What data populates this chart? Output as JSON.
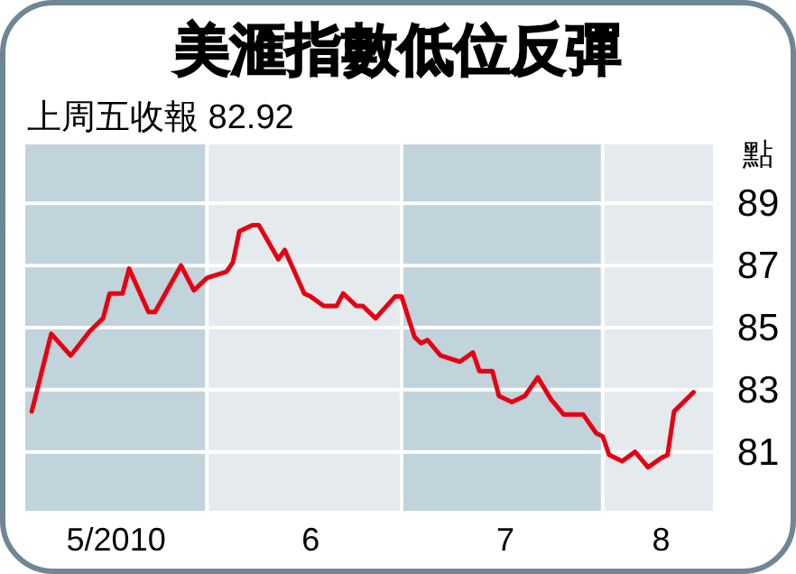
{
  "chart_data": {
    "type": "line",
    "title": "美滙指數低位反彈",
    "subtitle": "上周五收報 82.92",
    "ylabel": "點",
    "x": [
      "2010-05-05",
      "2010-05-08",
      "2010-05-11",
      "2010-05-14",
      "2010-05-16",
      "2010-05-17",
      "2010-05-19",
      "2010-05-20",
      "2010-05-23",
      "2010-05-24",
      "2010-05-28",
      "2010-05-30",
      "2010-06-01",
      "2010-06-04",
      "2010-06-05",
      "2010-06-06",
      "2010-06-08",
      "2010-06-09",
      "2010-06-12",
      "2010-06-13",
      "2010-06-16",
      "2010-06-17",
      "2010-06-19",
      "2010-06-21",
      "2010-06-22",
      "2010-06-24",
      "2010-06-25",
      "2010-06-27",
      "2010-06-30",
      "2010-07-01",
      "2010-07-03",
      "2010-07-04",
      "2010-07-05",
      "2010-07-07",
      "2010-07-10",
      "2010-07-12",
      "2010-07-13",
      "2010-07-15",
      "2010-07-16",
      "2010-07-18",
      "2010-07-20",
      "2010-07-22",
      "2010-07-24",
      "2010-07-26",
      "2010-07-29",
      "2010-07-31",
      "2010-08-01",
      "2010-08-02",
      "2010-08-04",
      "2010-08-06",
      "2010-08-08",
      "2010-08-10",
      "2010-08-11",
      "2010-08-12",
      "2010-08-15"
    ],
    "series": [
      {
        "color": "#e60012",
        "values": [
          82.3,
          84.8,
          84.1,
          84.9,
          85.3,
          86.1,
          86.1,
          86.9,
          85.5,
          85.5,
          87.0,
          86.2,
          86.6,
          86.8,
          87.1,
          88.1,
          88.3,
          88.3,
          87.2,
          87.5,
          86.1,
          86.0,
          85.7,
          85.7,
          86.1,
          85.7,
          85.7,
          85.3,
          86.0,
          86.0,
          84.7,
          84.5,
          84.6,
          84.1,
          83.9,
          84.2,
          83.6,
          83.6,
          82.8,
          82.6,
          82.8,
          83.4,
          82.7,
          82.2,
          82.2,
          81.6,
          81.5,
          80.9,
          80.7,
          81.0,
          80.5,
          80.8,
          80.9,
          82.3,
          82.92
        ]
      }
    ],
    "xlim": [
      "2010-05-04",
      "2010-08-18"
    ],
    "xticks": [
      {
        "value": "2010-05-18",
        "label": "5/2010"
      },
      {
        "value": "2010-06-17",
        "label": "6"
      },
      {
        "value": "2010-07-17",
        "label": "7"
      },
      {
        "value": "2010-08-10",
        "label": "8"
      }
    ],
    "ylim": [
      79.1,
      90.9
    ],
    "yticks": [
      81,
      83,
      85,
      87,
      89
    ],
    "grid": "y",
    "line_style": "solid",
    "bands": [
      {
        "axis": "x",
        "from": "2010-05-04",
        "to": "2010-06-01",
        "color": "#c1d3db"
      },
      {
        "axis": "x",
        "from": "2010-06-01",
        "to": "2010-07-01",
        "color": "#e5eaee"
      },
      {
        "axis": "x",
        "from": "2010-07-01",
        "to": "2010-08-01",
        "color": "#c1d3db"
      },
      {
        "axis": "x",
        "from": "2010-08-01",
        "to": "2010-08-18",
        "color": "#e5eaee"
      }
    ]
  }
}
